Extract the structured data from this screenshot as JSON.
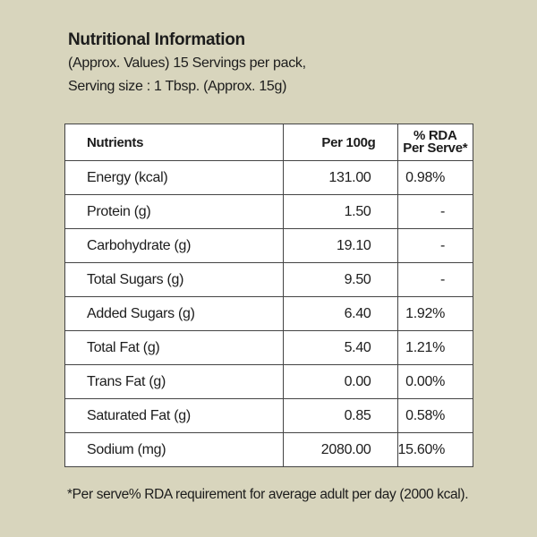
{
  "panel": {
    "title": "Nutritional Information",
    "line1": "(Approx. Values) 15 Servings per pack,",
    "line2": "Serving size : 1 Tbsp. (Approx. 15g)",
    "background_color": "#d8d5bd"
  },
  "table": {
    "headers": {
      "nutrients": "Nutrients",
      "per100g": "Per 100g",
      "rda_line1": "% RDA",
      "rda_line2": "Per Serve*"
    },
    "rows": [
      {
        "name": "Energy (kcal)",
        "per100g": "131.00",
        "rda": "0.98%"
      },
      {
        "name": "Protein (g)",
        "per100g": "1.50",
        "rda": "-"
      },
      {
        "name": "Carbohydrate (g)",
        "per100g": "19.10",
        "rda": "-"
      },
      {
        "name": "Total Sugars (g)",
        "per100g": "9.50",
        "rda": "-"
      },
      {
        "name": "Added Sugars (g)",
        "per100g": "6.40",
        "rda": "1.92%"
      },
      {
        "name": "Total Fat (g)",
        "per100g": "5.40",
        "rda": "1.21%"
      },
      {
        "name": "Trans Fat (g)",
        "per100g": "0.00",
        "rda": "0.00%"
      },
      {
        "name": "Saturated Fat (g)",
        "per100g": "0.85",
        "rda": "0.58%"
      },
      {
        "name": "Sodium (mg)",
        "per100g": "2080.00",
        "rda": "15.60%"
      }
    ]
  },
  "footnote": "*Per serve% RDA requirement for average adult per day (2000 kcal)."
}
